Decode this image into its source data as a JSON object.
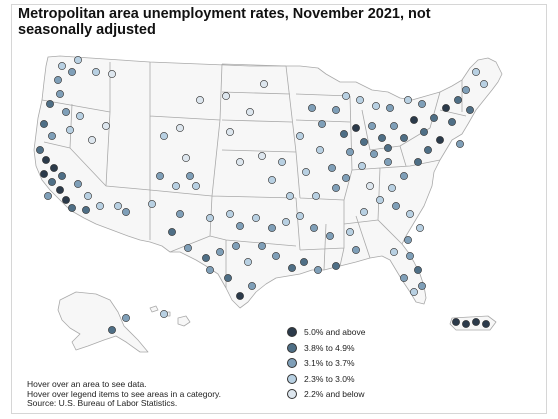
{
  "title": "Metropolitan area unemployment rates, November 2021, not seasonally adjusted",
  "legend": {
    "items": [
      {
        "label": "5.0% and above",
        "color": "#2b3a4a"
      },
      {
        "label": "3.8% to 4.9%",
        "color": "#4f6f86"
      },
      {
        "label": "3.1% to 3.7%",
        "color": "#7f9fb8"
      },
      {
        "label": "2.3% to 3.0%",
        "color": "#b8d0e2"
      },
      {
        "label": "2.2% and below",
        "color": "#dde6ee"
      }
    ]
  },
  "notes": {
    "line1": "Hover over an area to see data.",
    "line2": "Hover over legend items to see areas in a category.",
    "line3": "Source: U.S. Bureau of Labor Statistics."
  },
  "colors": {
    "state_fill": "#f7f7f7",
    "state_stroke": "#a9a9a9",
    "dot_stroke": "#2a2a2a"
  }
}
